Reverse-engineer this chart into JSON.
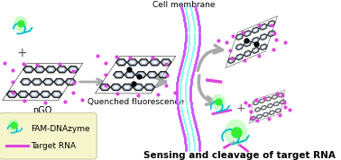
{
  "bg_color": "#ffffff",
  "ngo_label": "nGO",
  "quenched_label": "Quenched fluorescence",
  "cell_membrane_label": "Cell membrane",
  "bottom_label": "Sensing and cleavage of target RNA",
  "legend_label1": "FAM-DNAzyme",
  "legend_label2": "Target RNA",
  "graphene_ec": "#333333",
  "graphene_blue_ec": "#7799cc",
  "pink_color": "#dd44dd",
  "cyan_color": "#00bbcc",
  "green_color": "#33ee33",
  "green_glow": "#aaffaa",
  "membrane_cyan": "#88ffee",
  "membrane_purple": "#cc55ff",
  "arrow_color": "#aaaaaa",
  "legend_box_color": "#f5f5cc",
  "legend_box_edge": "#ccccaa"
}
